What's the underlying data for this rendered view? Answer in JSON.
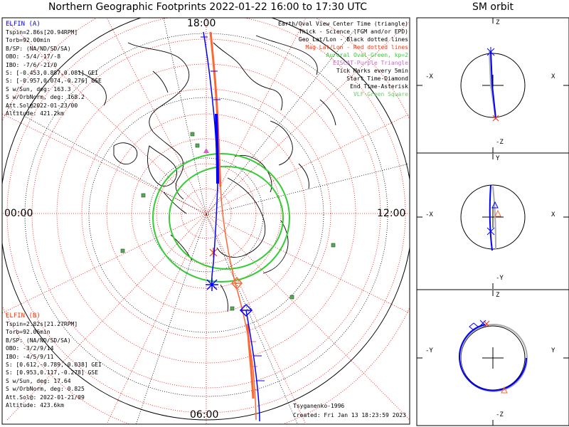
{
  "title": "Northern Geographic Footprints 2022-01-22 16:00 to 17:30 UTC",
  "orbit_title": "SM orbit",
  "map_labels": {
    "top": "18:00",
    "bottom": "06:00",
    "left": "00:00",
    "right": "12:00"
  },
  "legend": [
    {
      "text": "Earth/Oval View Center Time (triangle)",
      "color": "#000000"
    },
    {
      "text": "Thick - Science (FGM and/or EPD)",
      "color": "#000000"
    },
    {
      "text": "Geo Lat/Lon - Black dotted lines",
      "color": "#000000"
    },
    {
      "text": "Mag Lat/Lon - Red dotted lines",
      "color": "#ff0000"
    },
    {
      "text": "Auroral Oval-Green, kp=2",
      "color": "#33cc33"
    },
    {
      "text": "EISCAT-Purple Triangle",
      "color": "#cc66cc"
    },
    {
      "text": "Tick Marks every 5min",
      "color": "#000000"
    },
    {
      "text": "Start Time-Diamond",
      "color": "#000000"
    },
    {
      "text": "End Time-Asterisk",
      "color": "#000000"
    },
    {
      "text": "VLF-Green Square",
      "color": "#66cc66"
    }
  ],
  "elfin_a": {
    "name": "ELFIN (A)",
    "lines": [
      "Tspin=2.86s[20.94RPM]",
      "Torb=92.00min",
      "B/SP: (NA/ND/SD/SA)",
      "OBO: -5/4/-17/-8",
      "IBO: -7/6/-21/0",
      "S: [-0.453,0.887,0.081] GEI",
      "S: [-0.957,0.074,-0.276] GSE",
      "S w/Sun, deg: 163.3",
      "S w/OrbNorm, deg: 168.2",
      "Att.Sol@2022-01-23/00",
      "Altitude: 421.2km"
    ]
  },
  "elfin_b": {
    "name": "ELFIN (B)",
    "lines": [
      "Tspin=2.82s[21.27RPM]",
      "Torb=92.06min",
      "B/SP: (NA/ND/SD/SA)",
      "OBO: -3/2/9/14",
      "IBO: -4/5/9/11",
      "S: [0.612,-0.789,-0.038] GEI",
      "S: [0.953,0.117,-0.278] GSE",
      "S w/Sun, deg: 17.64",
      "S w/OrbNorm, deg: 0.825",
      "Att.Sol@: 2022-01-21/09",
      "Altitude: 423.6km"
    ]
  },
  "model": "Tsyganenko-1996",
  "created": "Created: Fri Jan 13 18:23:59 2023",
  "panels": [
    {
      "top": "Z",
      "bottom": "-Z",
      "left": "-X",
      "right": "X"
    },
    {
      "top": "Y",
      "bottom": "-Y",
      "left": "-X",
      "right": "X"
    },
    {
      "top": "Z",
      "bottom": "-Z",
      "left": "-Y",
      "right": "Y"
    }
  ],
  "colors": {
    "elfin_a": "#0000ff",
    "elfin_b": "#ff6633",
    "oval": "#33cc33",
    "mag_grid": "#ff0000",
    "geo_grid": "#000000",
    "vlf": "#339933"
  }
}
